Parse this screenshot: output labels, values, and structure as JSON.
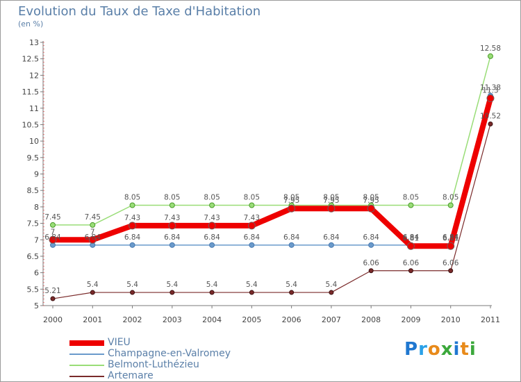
{
  "title": "Evolution du Taux de Taxe d'Habitation",
  "subtitle": "(en %)",
  "logo": {
    "text": "Proxiti",
    "colors": [
      "#1f77d0",
      "#2aa1e8",
      "#e88a1a",
      "#3ba83b",
      "#1f77d0",
      "#e88a1a",
      "#3ba83b"
    ]
  },
  "chart_data": {
    "type": "line",
    "x": [
      "2000",
      "2001",
      "2002",
      "2003",
      "2004",
      "2005",
      "2006",
      "2007",
      "2008",
      "2009",
      "2010",
      "2011"
    ],
    "ylim": [
      5,
      13
    ],
    "yticks": [
      "5",
      "5.5",
      "6",
      "6.5",
      "7",
      "7.5",
      "8",
      "8.5",
      "9",
      "9.5",
      "10",
      "10.5",
      "11",
      "11.5",
      "12",
      "12.5",
      "13"
    ],
    "grid": false,
    "legend_position": "bottom-left",
    "series": [
      {
        "name": "VIEU",
        "color": "#ee0000",
        "values": [
          7,
          7,
          7.43,
          7.43,
          7.43,
          7.43,
          7.95,
          7.95,
          7.95,
          6.81,
          6.81,
          11.3
        ],
        "labels": [
          "7",
          "7",
          "7.43",
          "7.43",
          "7.43",
          "7.43",
          "7.95",
          "7.95",
          "7.95",
          "6.81",
          "6.81",
          "11.3"
        ]
      },
      {
        "name": "Champagne-en-Valromey",
        "color": "#6a9acb",
        "values": [
          6.84,
          6.84,
          6.84,
          6.84,
          6.84,
          6.84,
          6.84,
          6.84,
          6.84,
          6.84,
          6.84,
          11.38
        ],
        "labels": [
          "6.84",
          "6.84",
          "6.84",
          "6.84",
          "6.84",
          "6.84",
          "6.84",
          "6.84",
          "6.84",
          "6.84",
          "6.84",
          "11.38"
        ]
      },
      {
        "name": "Belmont-Luthézieu",
        "color": "#99dd77",
        "values": [
          7.45,
          7.45,
          8.05,
          8.05,
          8.05,
          8.05,
          8.05,
          8.05,
          8.05,
          8.05,
          8.05,
          12.58
        ],
        "labels": [
          "7.45",
          "7.45",
          "8.05",
          "8.05",
          "8.05",
          "8.05",
          "8.05",
          "8.05",
          "8.05",
          "8.05",
          "8.05",
          "12.58"
        ]
      },
      {
        "name": "Artemare",
        "color": "#7a2a2a",
        "values": [
          5.21,
          5.4,
          5.4,
          5.4,
          5.4,
          5.4,
          5.4,
          5.4,
          6.06,
          6.06,
          6.06,
          10.52
        ],
        "labels": [
          "5.21",
          "5.4",
          "5.4",
          "5.4",
          "5.4",
          "5.4",
          "5.4",
          "5.4",
          "6.06",
          "6.06",
          "6.06",
          "10.52"
        ]
      }
    ]
  }
}
